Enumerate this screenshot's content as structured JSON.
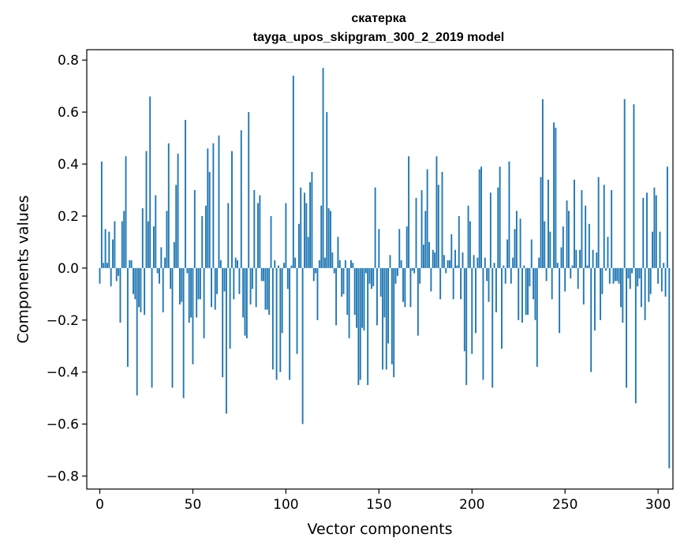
{
  "chart_data": {
    "type": "bar",
    "title": "скатерка",
    "subtitle": "tayga_upos_skipgram_300_2_2019 model",
    "xlabel": "Vector components",
    "ylabel": "Components values",
    "xlim": [
      -7,
      308
    ],
    "ylim": [
      -0.85,
      0.84
    ],
    "xticks": [
      0,
      50,
      100,
      150,
      200,
      250,
      300
    ],
    "yticks": [
      -0.8,
      -0.6,
      -0.4,
      -0.2,
      0.0,
      0.2,
      0.4,
      0.6,
      0.8
    ],
    "ytick_labels": [
      "−0.8",
      "−0.6",
      "−0.4",
      "−0.2",
      "0.0",
      "0.2",
      "0.4",
      "0.6",
      "0.8"
    ],
    "color": "#1f77b4",
    "values": [
      -0.06,
      0.41,
      0.02,
      0.15,
      0.02,
      0.14,
      -0.07,
      0.11,
      0.18,
      -0.05,
      -0.03,
      -0.21,
      0.18,
      0.22,
      0.43,
      -0.38,
      0.03,
      0.03,
      -0.1,
      -0.12,
      -0.49,
      -0.15,
      -0.17,
      0.23,
      -0.18,
      0.45,
      0.18,
      0.66,
      -0.46,
      0.16,
      0.28,
      -0.02,
      -0.06,
      0.08,
      -0.17,
      0.04,
      0.22,
      0.48,
      -0.08,
      -0.46,
      0.1,
      0.32,
      0.44,
      -0.14,
      -0.13,
      -0.5,
      0.57,
      -0.02,
      -0.21,
      -0.19,
      -0.37,
      0.3,
      -0.19,
      -0.12,
      -0.12,
      0.2,
      -0.27,
      0.24,
      0.46,
      0.37,
      -0.15,
      0.48,
      -0.16,
      -0.1,
      0.51,
      0.03,
      -0.42,
      -0.09,
      -0.56,
      0.25,
      -0.31,
      0.45,
      -0.12,
      0.04,
      0.03,
      -0.1,
      0.53,
      -0.19,
      -0.26,
      -0.27,
      0.6,
      -0.14,
      -0.08,
      0.3,
      -0.15,
      0.25,
      0.28,
      -0.05,
      -0.05,
      -0.16,
      -0.16,
      -0.18,
      0.2,
      -0.39,
      0.03,
      -0.43,
      0.01,
      -0.4,
      -0.25,
      0.02,
      0.25,
      -0.08,
      -0.43,
      0.01,
      0.74,
      0.04,
      -0.33,
      0.17,
      0.31,
      -0.6,
      0.29,
      0.25,
      0.12,
      0.33,
      0.37,
      -0.05,
      -0.02,
      -0.2,
      0.03,
      0.24,
      0.77,
      0.04,
      0.6,
      0.23,
      0.22,
      0.06,
      -0.02,
      -0.22,
      0.12,
      0.03,
      -0.11,
      -0.1,
      0.03,
      -0.18,
      -0.27,
      0.03,
      0.02,
      -0.18,
      -0.23,
      -0.45,
      -0.43,
      -0.23,
      -0.24,
      -0.02,
      -0.45,
      -0.06,
      -0.08,
      -0.07,
      0.31,
      -0.22,
      0.15,
      -0.11,
      -0.39,
      -0.19,
      -0.39,
      -0.29,
      0.05,
      -0.37,
      -0.42,
      -0.06,
      -0.03,
      0.15,
      0.03,
      -0.13,
      -0.15,
      0.16,
      0.43,
      -0.15,
      -0.01,
      -0.02,
      0.27,
      -0.26,
      -0.06,
      0.3,
      0.09,
      0.22,
      0.38,
      0.1,
      -0.09,
      0.07,
      0.06,
      0.43,
      0.32,
      -0.12,
      0.37,
      0.05,
      -0.02,
      0.03,
      0.03,
      0.13,
      -0.12,
      0.07,
      0.01,
      0.2,
      -0.12,
      0.06,
      -0.32,
      -0.45,
      0.24,
      0.18,
      -0.33,
      0.05,
      -0.25,
      0.04,
      0.38,
      0.39,
      -0.43,
      0.04,
      -0.05,
      -0.13,
      0.29,
      -0.46,
      0.02,
      -0.17,
      0.31,
      0.39,
      -0.31,
      0.01,
      -0.06,
      0.11,
      0.41,
      -0.06,
      0.04,
      0.15,
      0.22,
      -0.2,
      0.19,
      -0.21,
      0.01,
      -0.18,
      -0.18,
      -0.07,
      0.11,
      -0.12,
      -0.2,
      -0.38,
      0.04,
      0.35,
      0.65,
      0.18,
      -0.05,
      0.34,
      0.14,
      -0.12,
      0.56,
      0.54,
      0.02,
      -0.25,
      0.08,
      0.16,
      -0.09,
      0.26,
      0.22,
      -0.04,
      0.01,
      0.34,
      0.07,
      -0.08,
      0.07,
      0.3,
      -0.14,
      0.24,
      0.01,
      0.17,
      -0.4,
      0.07,
      -0.24,
      0.06,
      0.35,
      -0.2,
      -0.1,
      0.32,
      -0.01,
      0.12,
      -0.06,
      0.3,
      -0.06,
      -0.05,
      -0.05,
      -0.06,
      -0.15,
      -0.21,
      0.65,
      -0.46,
      -0.04,
      -0.08,
      -0.02,
      0.63,
      -0.52,
      -0.07,
      -0.04,
      -0.15,
      0.27,
      -0.2,
      0.29,
      -0.13,
      -0.1,
      0.14,
      0.31,
      0.28,
      -0.06,
      0.14,
      -0.09,
      0.02,
      -0.11,
      0.39,
      -0.77
    ]
  }
}
